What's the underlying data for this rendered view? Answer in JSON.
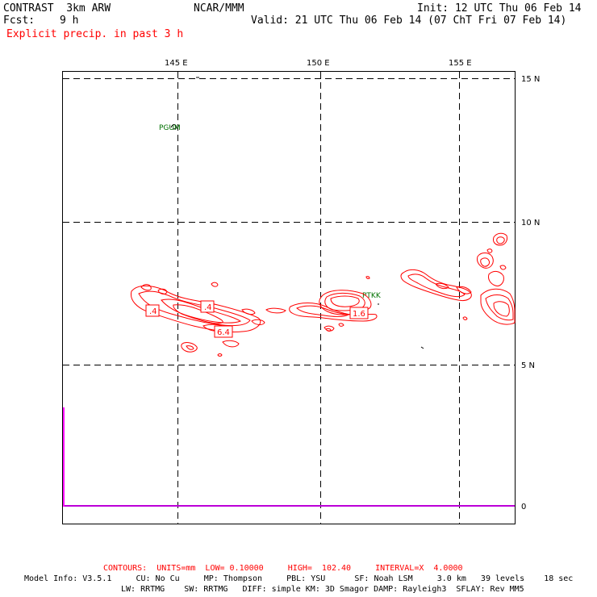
{
  "header": {
    "model": "CONTRAST  3km ARW",
    "fcst_label": "Fcst:",
    "fcst_value": "9 h",
    "org": "NCAR/MMM",
    "init": "Init: 12 UTC Thu 06 Feb 14",
    "valid": "Valid: 21 UTC Thu 06 Feb 14 (07 ChT Fri 07 Feb 14)",
    "field": "Explicit precip. in past 3 h"
  },
  "map": {
    "lon_labels": [
      "145 E",
      "150 E",
      "155 E"
    ],
    "lat_labels": [
      "15 N",
      "10 N",
      "5 N",
      "0"
    ],
    "stations": [
      "PGUM",
      "PTKK"
    ],
    "contour_labels": [
      ".4",
      ".4",
      "6.4",
      "1.6"
    ],
    "colors": {
      "contour": "#ff0000",
      "grid": "#000000",
      "coast": "#ff00ff",
      "station": "#007000"
    }
  },
  "footer": {
    "contours": "CONTOURS:  UNITS=mm  LOW= 0.10000     HIGH=  102.40     INTERVAL=X  4.0000",
    "model_info_1": "Model Info: V3.5.1     CU: No Cu     MP: Thompson     PBL: YSU      SF: Noah LSM     3.0 km   39 levels    18 sec",
    "model_info_2": "LW: RRTMG    SW: RRTMG   DIFF: simple KM: 3D Smagor DAMP: Rayleigh3  SFLAY: Rev MM5"
  }
}
